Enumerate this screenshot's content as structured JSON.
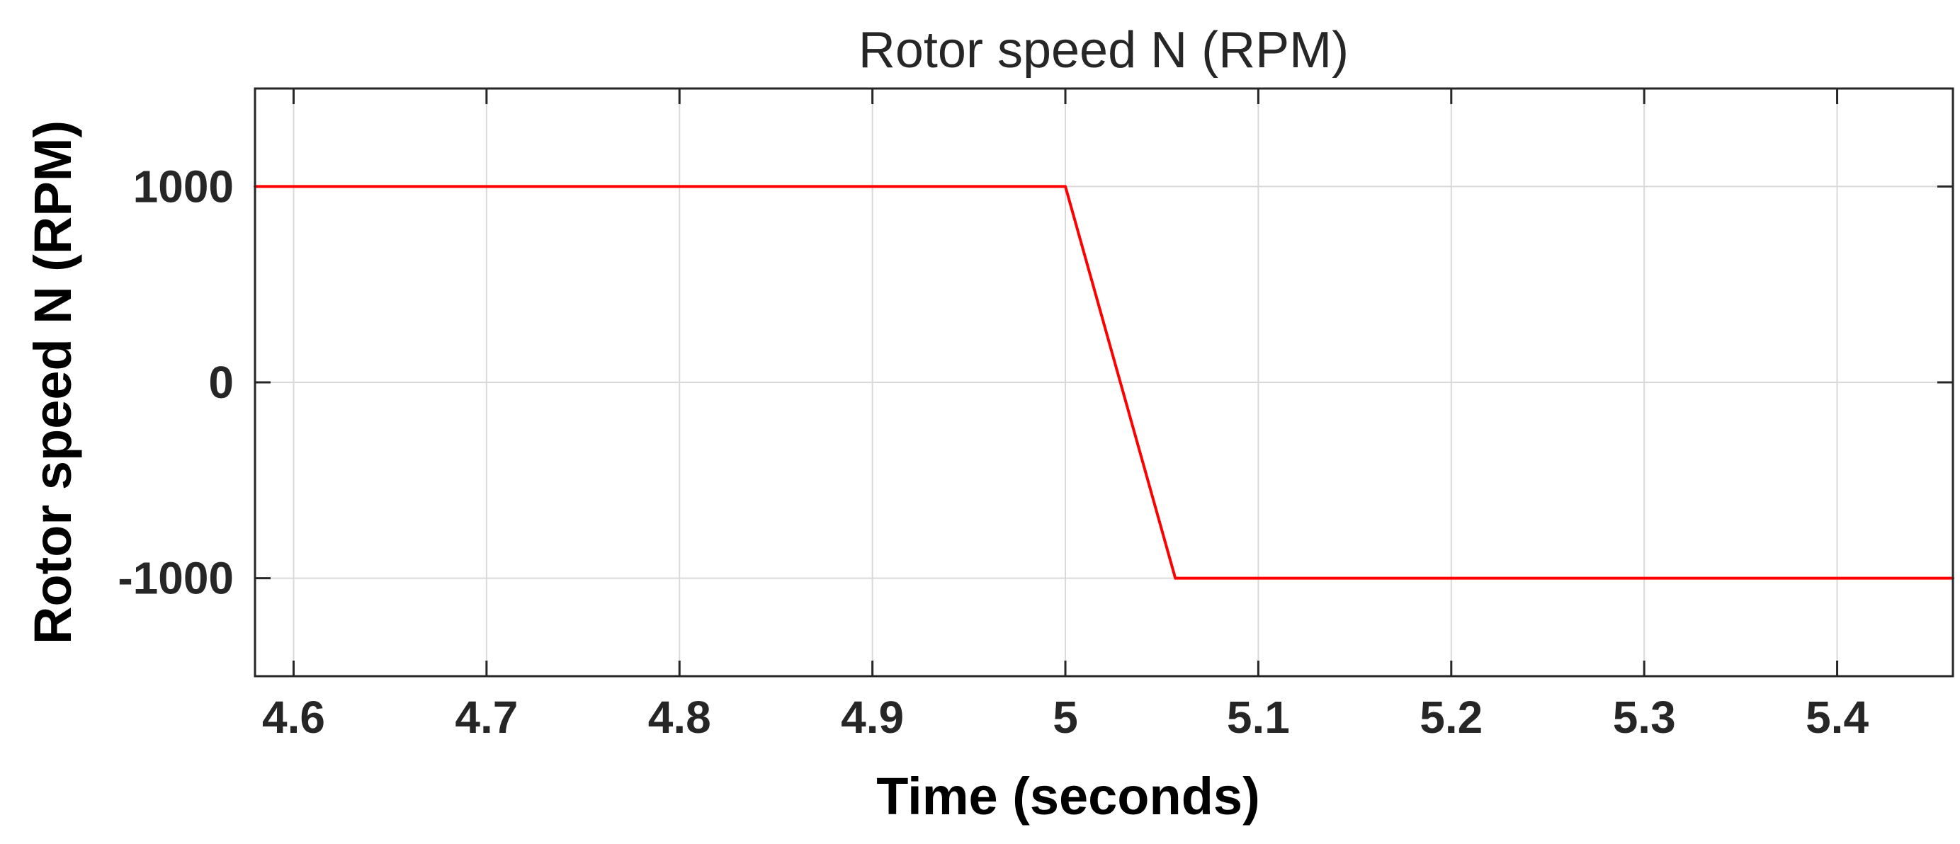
{
  "chart_data": {
    "type": "line",
    "title": "Rotor speed N (RPM)",
    "xlabel": "Time (seconds)",
    "ylabel": "Rotor speed N (RPM)",
    "xlim": [
      4.58,
      5.46
    ],
    "ylim": [
      -1500,
      1500
    ],
    "grid": true,
    "legend": "none",
    "x_ticks": [
      4.6,
      4.7,
      4.8,
      4.9,
      5,
      5.1,
      5.2,
      5.3,
      5.4
    ],
    "x_tick_labels": [
      "4.6",
      "4.7",
      "4.8",
      "4.9",
      "5",
      "5.1",
      "5.2",
      "5.3",
      "5.4"
    ],
    "y_ticks": [
      1000,
      0,
      -1000
    ],
    "y_tick_labels": [
      "1000",
      "0",
      "-1000"
    ],
    "series": [
      {
        "color": "#ff0000",
        "x": [
          4.58,
          5.0,
          5.057,
          5.46
        ],
        "y": [
          1000,
          1000,
          -1000,
          -1000
        ]
      }
    ],
    "colors": {
      "line": "#ff0000",
      "grid": "#d9d9d9",
      "axes": "#262626",
      "background": "#ffffff"
    }
  }
}
